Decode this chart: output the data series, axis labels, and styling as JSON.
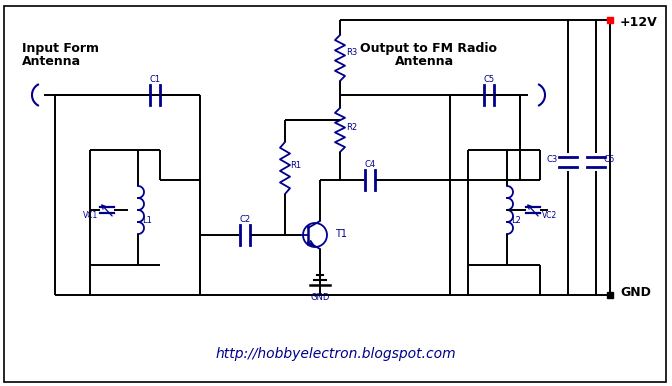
{
  "bg_color": "#ffffff",
  "wire_color": "#000000",
  "comp_color": "#00008B",
  "label_color": "#00008B",
  "red_color": "#ff0000",
  "black_color": "#000000",
  "url": "http://hobbyelectron.blogspot.com",
  "input_label1": "Input Form",
  "input_label2": "Antenna",
  "output_label1": "Output to FM Radio",
  "output_label2": "Antenna",
  "plus12v": "+12V",
  "gnd": "GND"
}
